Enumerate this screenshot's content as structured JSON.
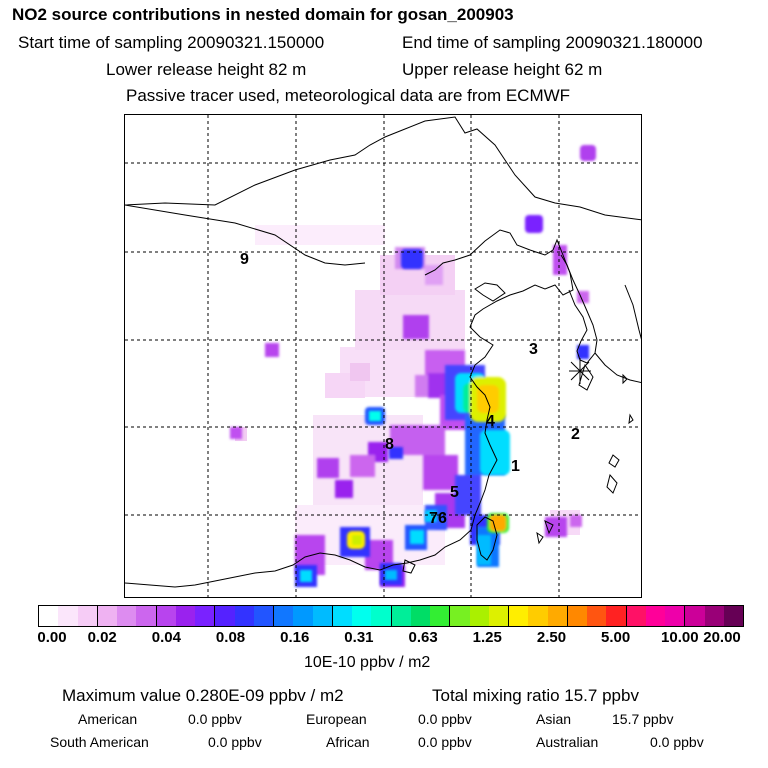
{
  "header": {
    "title": "NO2 source contributions in nested domain for gosan_200903",
    "start_time": "Start time of sampling 20090321.150000",
    "end_time": "End time of sampling 20090321.180000",
    "lower_height": "Lower release height   82 m",
    "upper_height": "Upper release height   62 m",
    "tracer_note": "Passive tracer used, meteorological data are from ECMWF"
  },
  "map": {
    "site_labels": [
      "1",
      "2",
      "3",
      "4",
      "5",
      "6",
      "7",
      "8",
      "9"
    ],
    "receptor": "gosan"
  },
  "colorbar": {
    "ticks": [
      "0.00",
      "0.02",
      "0.04",
      "0.08",
      "0.16",
      "0.31",
      "0.63",
      "1.25",
      "2.50",
      "5.00",
      "10.00",
      "20.00"
    ],
    "colors": [
      "#ffffff",
      "#fbe6fb",
      "#f6ccf6",
      "#efb2f2",
      "#dd8cf0",
      "#cc66ee",
      "#b844ee",
      "#9a22ee",
      "#7a22ff",
      "#5522ff",
      "#3333ff",
      "#2255ff",
      "#1177ff",
      "#0099ff",
      "#00bbff",
      "#00ddff",
      "#00ffee",
      "#00ffcc",
      "#00ee99",
      "#00dd66",
      "#33ee33",
      "#77f022",
      "#aaf000",
      "#ddf000",
      "#ffee00",
      "#ffcc00",
      "#ffaa00",
      "#ff8800",
      "#ff5511",
      "#ff2222",
      "#ff1166",
      "#ff0099",
      "#ee00aa",
      "#cc0099",
      "#990077",
      "#660055"
    ],
    "unit": "10E-10 ppbv / m2"
  },
  "stats": {
    "max_label": "Maximum value  0.280E-09 ppbv / m2",
    "total_label": "Total mixing ratio       15.7 ppbv",
    "regions": [
      {
        "name": "American",
        "value": "0.0 ppbv"
      },
      {
        "name": "European",
        "value": "0.0 ppbv"
      },
      {
        "name": "Asian",
        "value": "15.7 ppbv"
      },
      {
        "name": "South American",
        "value": "0.0 ppbv"
      },
      {
        "name": "African",
        "value": "0.0 ppbv"
      },
      {
        "name": "Australian",
        "value": "0.0 ppbv"
      }
    ]
  }
}
